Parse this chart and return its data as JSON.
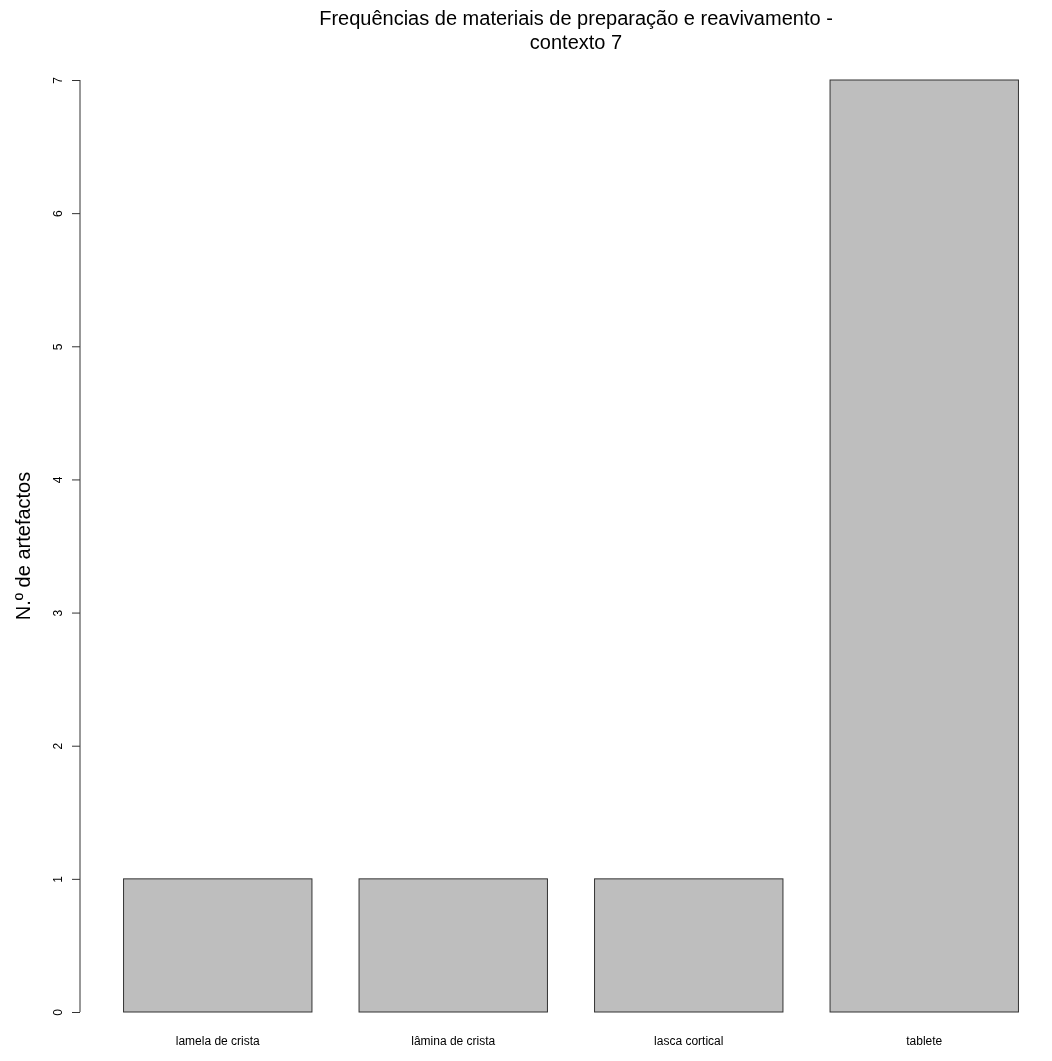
{
  "chart_data": {
    "type": "bar",
    "title": "Frequências de materiais de preparação e reavivamento - contexto 7",
    "ylabel": "N.º de artefactos",
    "categories": [
      "lamela de crista",
      "lâmina de crista",
      "lasca cortical",
      "tablete"
    ],
    "values": [
      1,
      1,
      1,
      7
    ],
    "color": "#bebebe",
    "ylim": [
      0,
      7
    ],
    "yticks": [
      0,
      1,
      2,
      3,
      4,
      5,
      6,
      7
    ],
    "grid": false
  }
}
